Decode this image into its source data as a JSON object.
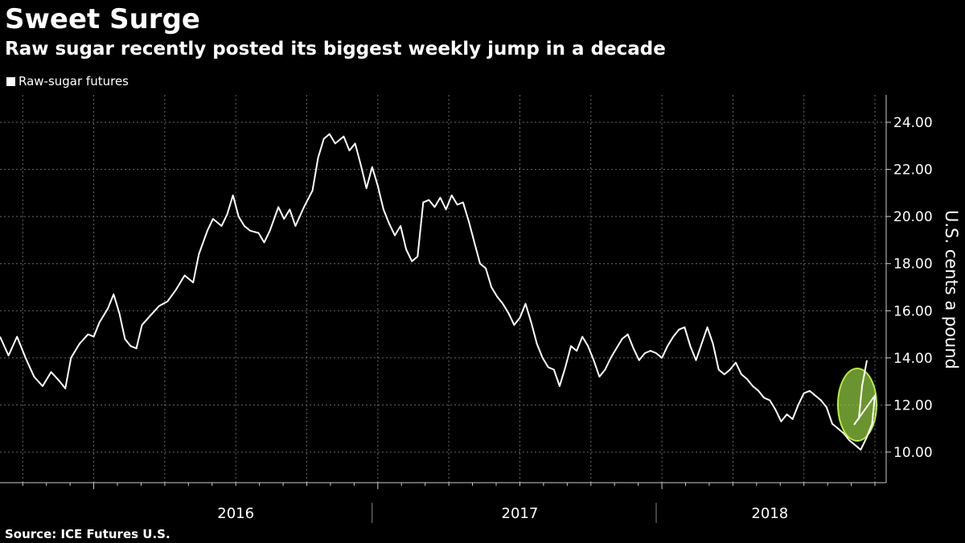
{
  "header": {
    "title": "Sweet Surge",
    "subtitle": "Raw sugar recently posted its biggest weekly jump in a decade"
  },
  "footer": {
    "source": "Source: ICE Futures U.S."
  },
  "colors": {
    "background": "#000000",
    "line": "#ffffff",
    "highlight_fill": "#8dc63f",
    "highlight_stroke": "#b5f03a"
  },
  "chart_data": {
    "type": "line",
    "title": "Sweet Surge",
    "subtitle": "Raw sugar recently posted its biggest weekly jump in a decade",
    "xlabel": "",
    "ylabel": "U.S. cents a pound",
    "x_unit": "month",
    "xlim": [
      2015.67,
      2018.75
    ],
    "ylim": [
      8.8,
      25.0
    ],
    "y_ticks": [
      "10.00",
      "12.00",
      "14.00",
      "16.00",
      "18.00",
      "20.00",
      "22.00",
      "24.00"
    ],
    "y_tick_values": [
      10,
      12,
      14,
      16,
      18,
      20,
      22,
      24
    ],
    "x_year_labels": [
      {
        "label": "2016",
        "center": 2016.5
      },
      {
        "label": "2017",
        "center": 2017.5
      },
      {
        "label": "2018",
        "center": 2018.38
      }
    ],
    "grid": true,
    "legend": "top-left",
    "series": [
      {
        "name": "Raw-sugar futures",
        "points": [
          [
            2015.67,
            14.9
          ],
          [
            2015.7,
            14.1
          ],
          [
            2015.73,
            14.9
          ],
          [
            2015.76,
            14.0
          ],
          [
            2015.79,
            13.2
          ],
          [
            2015.82,
            12.8
          ],
          [
            2015.85,
            13.4
          ],
          [
            2015.88,
            13.0
          ],
          [
            2015.9,
            12.7
          ],
          [
            2015.92,
            14.0
          ],
          [
            2015.95,
            14.6
          ],
          [
            2015.98,
            15.0
          ],
          [
            2016.0,
            14.9
          ],
          [
            2016.02,
            15.5
          ],
          [
            2016.05,
            16.1
          ],
          [
            2016.07,
            16.7
          ],
          [
            2016.09,
            15.9
          ],
          [
            2016.11,
            14.8
          ],
          [
            2016.13,
            14.5
          ],
          [
            2016.15,
            14.4
          ],
          [
            2016.17,
            15.4
          ],
          [
            2016.2,
            15.8
          ],
          [
            2016.23,
            16.2
          ],
          [
            2016.26,
            16.4
          ],
          [
            2016.29,
            16.9
          ],
          [
            2016.32,
            17.5
          ],
          [
            2016.35,
            17.2
          ],
          [
            2016.37,
            18.4
          ],
          [
            2016.4,
            19.4
          ],
          [
            2016.42,
            19.9
          ],
          [
            2016.45,
            19.6
          ],
          [
            2016.47,
            20.1
          ],
          [
            2016.49,
            20.9
          ],
          [
            2016.51,
            20.0
          ],
          [
            2016.53,
            19.6
          ],
          [
            2016.55,
            19.4
          ],
          [
            2016.58,
            19.3
          ],
          [
            2016.6,
            18.9
          ],
          [
            2016.62,
            19.4
          ],
          [
            2016.65,
            20.4
          ],
          [
            2016.67,
            19.9
          ],
          [
            2016.69,
            20.3
          ],
          [
            2016.71,
            19.6
          ],
          [
            2016.74,
            20.4
          ],
          [
            2016.77,
            21.1
          ],
          [
            2016.79,
            22.5
          ],
          [
            2016.81,
            23.3
          ],
          [
            2016.83,
            23.5
          ],
          [
            2016.85,
            23.1
          ],
          [
            2016.88,
            23.4
          ],
          [
            2016.9,
            22.8
          ],
          [
            2016.92,
            23.1
          ],
          [
            2016.94,
            22.2
          ],
          [
            2016.96,
            21.2
          ],
          [
            2016.98,
            22.1
          ],
          [
            2017.0,
            21.3
          ],
          [
            2017.02,
            20.3
          ],
          [
            2017.04,
            19.7
          ],
          [
            2017.06,
            19.2
          ],
          [
            2017.08,
            19.6
          ],
          [
            2017.1,
            18.6
          ],
          [
            2017.12,
            18.1
          ],
          [
            2017.14,
            18.3
          ],
          [
            2017.16,
            20.6
          ],
          [
            2017.18,
            20.7
          ],
          [
            2017.2,
            20.4
          ],
          [
            2017.22,
            20.8
          ],
          [
            2017.24,
            20.3
          ],
          [
            2017.26,
            20.9
          ],
          [
            2017.28,
            20.5
          ],
          [
            2017.3,
            20.6
          ],
          [
            2017.32,
            19.8
          ],
          [
            2017.34,
            18.9
          ],
          [
            2017.36,
            18.0
          ],
          [
            2017.38,
            17.8
          ],
          [
            2017.4,
            17.0
          ],
          [
            2017.42,
            16.6
          ],
          [
            2017.44,
            16.3
          ],
          [
            2017.46,
            15.9
          ],
          [
            2017.48,
            15.4
          ],
          [
            2017.5,
            15.7
          ],
          [
            2017.52,
            16.3
          ],
          [
            2017.54,
            15.5
          ],
          [
            2017.56,
            14.6
          ],
          [
            2017.58,
            14.0
          ],
          [
            2017.6,
            13.6
          ],
          [
            2017.62,
            13.5
          ],
          [
            2017.64,
            12.8
          ],
          [
            2017.66,
            13.6
          ],
          [
            2017.68,
            14.5
          ],
          [
            2017.7,
            14.3
          ],
          [
            2017.72,
            14.9
          ],
          [
            2017.74,
            14.5
          ],
          [
            2017.76,
            13.9
          ],
          [
            2017.78,
            13.2
          ],
          [
            2017.8,
            13.5
          ],
          [
            2017.82,
            14.0
          ],
          [
            2017.84,
            14.4
          ],
          [
            2017.86,
            14.8
          ],
          [
            2017.88,
            15.0
          ],
          [
            2017.9,
            14.4
          ],
          [
            2017.92,
            13.9
          ],
          [
            2017.94,
            14.2
          ],
          [
            2017.96,
            14.3
          ],
          [
            2017.98,
            14.2
          ],
          [
            2018.0,
            14.0
          ],
          [
            2018.02,
            14.5
          ],
          [
            2018.04,
            14.9
          ],
          [
            2018.06,
            15.2
          ],
          [
            2018.08,
            15.3
          ],
          [
            2018.1,
            14.5
          ],
          [
            2018.12,
            13.9
          ],
          [
            2018.14,
            14.6
          ],
          [
            2018.16,
            15.3
          ],
          [
            2018.18,
            14.6
          ],
          [
            2018.2,
            13.5
          ],
          [
            2018.22,
            13.3
          ],
          [
            2018.24,
            13.5
          ],
          [
            2018.26,
            13.8
          ],
          [
            2018.28,
            13.3
          ],
          [
            2018.3,
            13.1
          ],
          [
            2018.32,
            12.8
          ],
          [
            2018.34,
            12.6
          ],
          [
            2018.36,
            12.3
          ],
          [
            2018.38,
            12.2
          ],
          [
            2018.4,
            11.8
          ],
          [
            2018.42,
            11.3
          ],
          [
            2018.44,
            11.6
          ],
          [
            2018.46,
            11.4
          ],
          [
            2018.48,
            12.0
          ],
          [
            2018.5,
            12.5
          ],
          [
            2018.52,
            12.6
          ],
          [
            2018.54,
            12.4
          ],
          [
            2018.56,
            12.2
          ],
          [
            2018.58,
            11.9
          ],
          [
            2018.6,
            11.2
          ],
          [
            2018.62,
            11.0
          ],
          [
            2018.64,
            10.8
          ],
          [
            2018.66,
            10.5
          ],
          [
            2018.68,
            10.3
          ],
          [
            2018.7,
            10.1
          ],
          [
            2018.72,
            10.6
          ],
          [
            2018.74,
            11.2
          ],
          [
            2018.75,
            12.4
          ]
        ]
      }
    ],
    "highlight": {
      "type": "ellipse",
      "note": "recent weekly jump"
    }
  }
}
